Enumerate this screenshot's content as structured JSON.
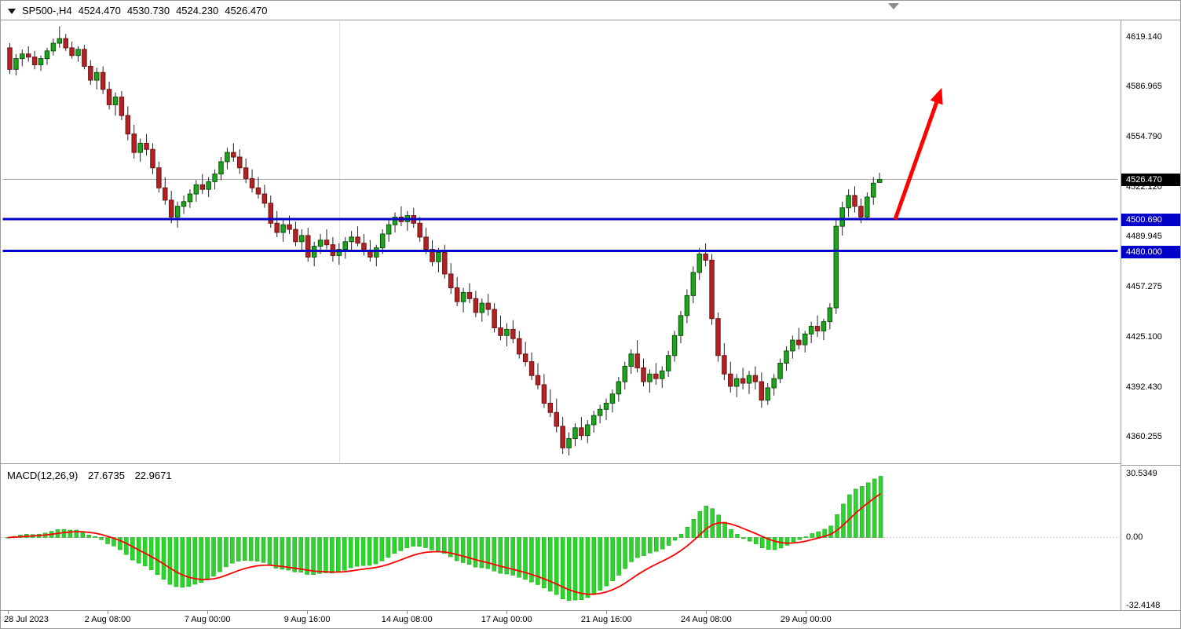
{
  "header": {
    "symbol_timeframe": "SP500-,H4",
    "open": "4524.470",
    "high": "4530.730",
    "low": "4524.230",
    "close": "4526.470"
  },
  "chart_data": {
    "type": "candlestick",
    "symbol": "SP500-",
    "timeframe": "H4",
    "price_axis": {
      "ticks": [
        "4619.140",
        "4586.965",
        "4554.790",
        "4522.120",
        "4489.945",
        "4457.275",
        "4425.100",
        "4392.430",
        "4360.255"
      ],
      "current_price": "4526.470",
      "range": [
        4360.255,
        4619.14
      ]
    },
    "time_axis": {
      "ticks": [
        {
          "bar": 0,
          "label": "28 Jul 2023"
        },
        {
          "bar": 16,
          "label": "2 Aug 08:00"
        },
        {
          "bar": 32,
          "label": "7 Aug 00:00"
        },
        {
          "bar": 48,
          "label": "9 Aug 16:00"
        },
        {
          "bar": 64,
          "label": "14 Aug 08:00"
        },
        {
          "bar": 80,
          "label": "17 Aug 00:00"
        },
        {
          "bar": 96,
          "label": "21 Aug 16:00"
        },
        {
          "bar": 112,
          "label": "24 Aug 08:00"
        },
        {
          "bar": 128,
          "label": "29 Aug 00:00"
        }
      ]
    },
    "levels": [
      {
        "price": 4500.69,
        "label": "4500.690"
      },
      {
        "price": 4480.0,
        "label": "4480.000"
      }
    ],
    "annotations": [
      {
        "type": "arrow",
        "from_bar": 142.5,
        "from_price": 4500.5,
        "to_bar": 150,
        "to_price": 4586,
        "color": "#FF0000"
      }
    ],
    "candles_ohlc": [
      [
        4612,
        4615,
        4595,
        4598
      ],
      [
        4598,
        4608,
        4594,
        4605
      ],
      [
        4605,
        4611,
        4600,
        4608
      ],
      [
        4608,
        4613,
        4603,
        4606
      ],
      [
        4606,
        4610,
        4598,
        4601
      ],
      [
        4601,
        4607,
        4597,
        4605
      ],
      [
        4605,
        4612,
        4601,
        4610
      ],
      [
        4610,
        4618,
        4607,
        4615
      ],
      [
        4615,
        4626,
        4612,
        4618
      ],
      [
        4618,
        4621,
        4610,
        4612
      ],
      [
        4612,
        4616,
        4605,
        4607
      ],
      [
        4607,
        4613,
        4603,
        4611
      ],
      [
        4611,
        4614,
        4598,
        4600
      ],
      [
        4600,
        4604,
        4588,
        4591
      ],
      [
        4591,
        4599,
        4585,
        4596
      ],
      [
        4596,
        4600,
        4582,
        4585
      ],
      [
        4585,
        4590,
        4572,
        4575
      ],
      [
        4575,
        4583,
        4568,
        4580
      ],
      [
        4580,
        4584,
        4565,
        4568
      ],
      [
        4568,
        4574,
        4552,
        4556
      ],
      [
        4556,
        4562,
        4540,
        4544
      ],
      [
        4544,
        4553,
        4538,
        4550
      ],
      [
        4550,
        4556,
        4542,
        4546
      ],
      [
        4546,
        4550,
        4530,
        4534
      ],
      [
        4534,
        4538,
        4518,
        4521
      ],
      [
        4521,
        4528,
        4510,
        4513
      ],
      [
        4513,
        4519,
        4498,
        4502
      ],
      [
        4502,
        4512,
        4495,
        4509
      ],
      [
        4509,
        4516,
        4504,
        4512
      ],
      [
        4512,
        4520,
        4508,
        4517
      ],
      [
        4517,
        4526,
        4512,
        4523
      ],
      [
        4523,
        4530,
        4517,
        4520
      ],
      [
        4520,
        4528,
        4515,
        4525
      ],
      [
        4525,
        4533,
        4520,
        4530
      ],
      [
        4530,
        4541,
        4526,
        4538
      ],
      [
        4538,
        4547,
        4533,
        4544
      ],
      [
        4544,
        4550,
        4538,
        4541
      ],
      [
        4541,
        4546,
        4530,
        4534
      ],
      [
        4534,
        4540,
        4524,
        4527
      ],
      [
        4527,
        4533,
        4518,
        4521
      ],
      [
        4521,
        4528,
        4514,
        4517
      ],
      [
        4517,
        4523,
        4508,
        4511
      ],
      [
        4511,
        4516,
        4495,
        4498
      ],
      [
        4498,
        4506,
        4489,
        4492
      ],
      [
        4492,
        4501,
        4486,
        4497
      ],
      [
        4497,
        4503,
        4491,
        4494
      ],
      [
        4494,
        4499,
        4483,
        4486
      ],
      [
        4486,
        4494,
        4480,
        4490
      ],
      [
        4490,
        4495,
        4473,
        4476
      ],
      [
        4476,
        4486,
        4470,
        4483
      ],
      [
        4483,
        4491,
        4478,
        4487
      ],
      [
        4487,
        4494,
        4481,
        4484
      ],
      [
        4484,
        4489,
        4473,
        4477
      ],
      [
        4477,
        4485,
        4471,
        4481
      ],
      [
        4481,
        4489,
        4475,
        4486
      ],
      [
        4486,
        4493,
        4480,
        4489
      ],
      [
        4489,
        4496,
        4483,
        4485
      ],
      [
        4485,
        4491,
        4477,
        4480
      ],
      [
        4480,
        4487,
        4473,
        4476
      ],
      [
        4476,
        4484,
        4470,
        4482
      ],
      [
        4482,
        4494,
        4478,
        4491
      ],
      [
        4491,
        4500,
        4486,
        4497
      ],
      [
        4497,
        4505,
        4492,
        4502
      ],
      [
        4502,
        4509,
        4496,
        4499
      ],
      [
        4499,
        4506,
        4493,
        4503
      ],
      [
        4503,
        4508,
        4495,
        4498
      ],
      [
        4498,
        4502,
        4486,
        4489
      ],
      [
        4489,
        4495,
        4478,
        4481
      ],
      [
        4481,
        4487,
        4470,
        4473
      ],
      [
        4473,
        4482,
        4466,
        4479
      ],
      [
        4479,
        4484,
        4462,
        4465
      ],
      [
        4465,
        4472,
        4452,
        4456
      ],
      [
        4456,
        4463,
        4444,
        4447
      ],
      [
        4447,
        4456,
        4440,
        4453
      ],
      [
        4453,
        4459,
        4446,
        4449
      ],
      [
        4449,
        4454,
        4437,
        4440
      ],
      [
        4440,
        4449,
        4434,
        4446
      ],
      [
        4446,
        4452,
        4438,
        4442
      ],
      [
        4442,
        4446,
        4427,
        4430
      ],
      [
        4430,
        4438,
        4422,
        4425
      ],
      [
        4425,
        4433,
        4418,
        4429
      ],
      [
        4429,
        4435,
        4420,
        4423
      ],
      [
        4423,
        4428,
        4410,
        4413
      ],
      [
        4413,
        4421,
        4405,
        4408
      ],
      [
        4408,
        4414,
        4396,
        4399
      ],
      [
        4399,
        4407,
        4390,
        4393
      ],
      [
        4393,
        4400,
        4378,
        4381
      ],
      [
        4381,
        4390,
        4372,
        4375
      ],
      [
        4375,
        4384,
        4362,
        4366
      ],
      [
        4366,
        4372,
        4348,
        4352
      ],
      [
        4352,
        4362,
        4347,
        4358
      ],
      [
        4358,
        4368,
        4353,
        4365
      ],
      [
        4365,
        4372,
        4357,
        4360
      ],
      [
        4360,
        4370,
        4355,
        4367
      ],
      [
        4367,
        4376,
        4362,
        4373
      ],
      [
        4373,
        4380,
        4368,
        4377
      ],
      [
        4377,
        4384,
        4370,
        4381
      ],
      [
        4381,
        4390,
        4375,
        4387
      ],
      [
        4387,
        4398,
        4382,
        4395
      ],
      [
        4395,
        4408,
        4390,
        4405
      ],
      [
        4405,
        4416,
        4400,
        4413
      ],
      [
        4413,
        4422,
        4401,
        4404
      ],
      [
        4404,
        4410,
        4392,
        4395
      ],
      [
        4395,
        4403,
        4388,
        4400
      ],
      [
        4400,
        4407,
        4393,
        4397
      ],
      [
        4397,
        4405,
        4391,
        4402
      ],
      [
        4402,
        4415,
        4398,
        4412
      ],
      [
        4412,
        4428,
        4408,
        4425
      ],
      [
        4425,
        4441,
        4420,
        4438
      ],
      [
        4438,
        4455,
        4433,
        4451
      ],
      [
        4451,
        4470,
        4446,
        4466
      ],
      [
        4466,
        4482,
        4461,
        4478
      ],
      [
        4478,
        4485,
        4470,
        4474
      ],
      [
        4474,
        4478,
        4432,
        4436
      ],
      [
        4436,
        4440,
        4408,
        4412
      ],
      [
        4412,
        4420,
        4396,
        4400
      ],
      [
        4400,
        4408,
        4388,
        4392
      ],
      [
        4392,
        4400,
        4385,
        4397
      ],
      [
        4397,
        4404,
        4390,
        4394
      ],
      [
        4394,
        4402,
        4387,
        4399
      ],
      [
        4399,
        4405,
        4390,
        4395
      ],
      [
        4395,
        4401,
        4378,
        4383
      ],
      [
        4383,
        4394,
        4380,
        4391
      ],
      [
        4391,
        4400,
        4386,
        4397
      ],
      [
        4397,
        4410,
        4394,
        4407
      ],
      [
        4407,
        4418,
        4402,
        4415
      ],
      [
        4415,
        4425,
        4410,
        4422
      ],
      [
        4422,
        4430,
        4416,
        4419
      ],
      [
        4419,
        4428,
        4414,
        4426
      ],
      [
        4426,
        4434,
        4420,
        4431
      ],
      [
        4431,
        4438,
        4424,
        4428
      ],
      [
        4428,
        4436,
        4422,
        4434
      ],
      [
        4434,
        4446,
        4429,
        4443
      ],
      [
        4443,
        4500,
        4439,
        4496
      ],
      [
        4496,
        4512,
        4490,
        4508
      ],
      [
        4508,
        4520,
        4502,
        4516
      ],
      [
        4516,
        4522,
        4505,
        4509
      ],
      [
        4509,
        4514,
        4498,
        4502
      ],
      [
        4502,
        4518,
        4500,
        4515
      ],
      [
        4515,
        4528,
        4510,
        4524
      ],
      [
        4524.47,
        4530.73,
        4524.23,
        4526.47
      ]
    ],
    "macd": {
      "title": "MACD(12,26,9)",
      "fast": 12,
      "slow": 26,
      "signal": 9,
      "macd_value": "27.6735",
      "signal_value": "22.9671",
      "y_ticks": [
        {
          "value": 30.5349,
          "label": "30.5349"
        },
        {
          "value": 0,
          "label": "0.00"
        },
        {
          "value": -32.4148,
          "label": "-32.4148"
        }
      ],
      "y_max": 30.5349,
      "y_min": -32.4148
    },
    "colors": {
      "bull_fill": "#1CA51C",
      "bull_stroke": "#0B520B",
      "bear_fill": "#B22222",
      "bear_stroke": "#6E1414",
      "wick": "#222222",
      "level_line": "#0000C8",
      "level_tag_bg": "#0000C8",
      "current_price_line": "#ABABAB",
      "current_price_tag_bg": "#000000",
      "macd_histogram": "#2ED42E",
      "macd_histogram_stroke": "#17A017",
      "macd_signal": "#FF0000",
      "arrow": "#FF0000"
    }
  }
}
